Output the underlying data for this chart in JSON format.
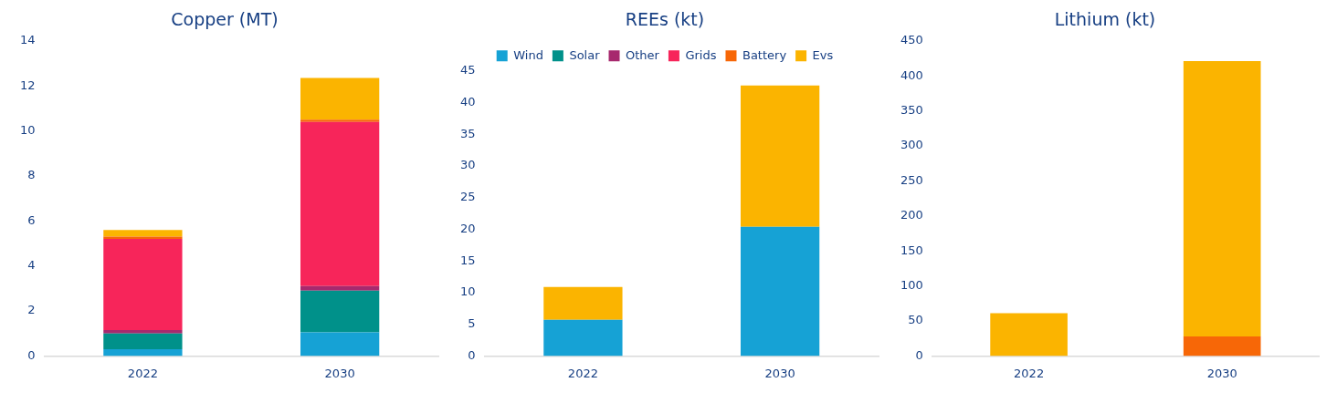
{
  "chart_data": [
    {
      "type": "bar",
      "title": "Copper (MT)",
      "categories": [
        "2022",
        "2030"
      ],
      "stacked": true,
      "ylim": [
        0,
        14
      ],
      "yticks": [
        0,
        2,
        4,
        6,
        8,
        10,
        12,
        14
      ],
      "grid": false,
      "legend": false,
      "series": [
        {
          "color": "#16a2d5",
          "values": [
            0.3,
            1.05
          ]
        },
        {
          "color": "#00918a",
          "values": [
            0.7,
            1.85
          ]
        },
        {
          "color": "#a7296e",
          "values": [
            0.15,
            0.2
          ]
        },
        {
          "color": "#f7255a",
          "values": [
            4.05,
            7.3
          ]
        },
        {
          "color": "#f76707",
          "values": [
            0.1,
            0.1
          ]
        },
        {
          "color": "#fbb400",
          "values": [
            0.3,
            1.85
          ]
        }
      ]
    },
    {
      "type": "bar",
      "title": "REEs (kt)",
      "categories": [
        "2022",
        "2030"
      ],
      "stacked": true,
      "ylim": [
        0,
        45
      ],
      "yticks": [
        0,
        5,
        10,
        15,
        20,
        25,
        30,
        35,
        40,
        45
      ],
      "grid": false,
      "legend": "top",
      "series": [
        {
          "name": "Wind",
          "color": "#16a2d5",
          "values": [
            5.7,
            20.4
          ]
        },
        {
          "name": "Solar",
          "color": "#00918a",
          "values": [
            null,
            null
          ]
        },
        {
          "name": "Other",
          "color": "#a7296e",
          "values": [
            null,
            null
          ]
        },
        {
          "name": "Grids",
          "color": "#f7255a",
          "values": [
            null,
            null
          ]
        },
        {
          "name": "Battery",
          "color": "#f76707",
          "values": [
            null,
            null
          ]
        },
        {
          "name": "Evs",
          "color": "#fbb400",
          "values": [
            5.2,
            22.3
          ]
        }
      ]
    },
    {
      "type": "bar",
      "title": "Lithium (kt)",
      "categories": [
        "2022",
        "2030"
      ],
      "stacked": true,
      "ylim": [
        0,
        450
      ],
      "yticks": [
        0,
        50,
        100,
        150,
        200,
        250,
        300,
        350,
        400,
        450
      ],
      "grid": false,
      "legend": false,
      "series": [
        {
          "color": "#f76707",
          "values": [
            null,
            28
          ]
        },
        {
          "color": "#fbb400",
          "values": [
            61,
            393
          ]
        }
      ]
    }
  ]
}
